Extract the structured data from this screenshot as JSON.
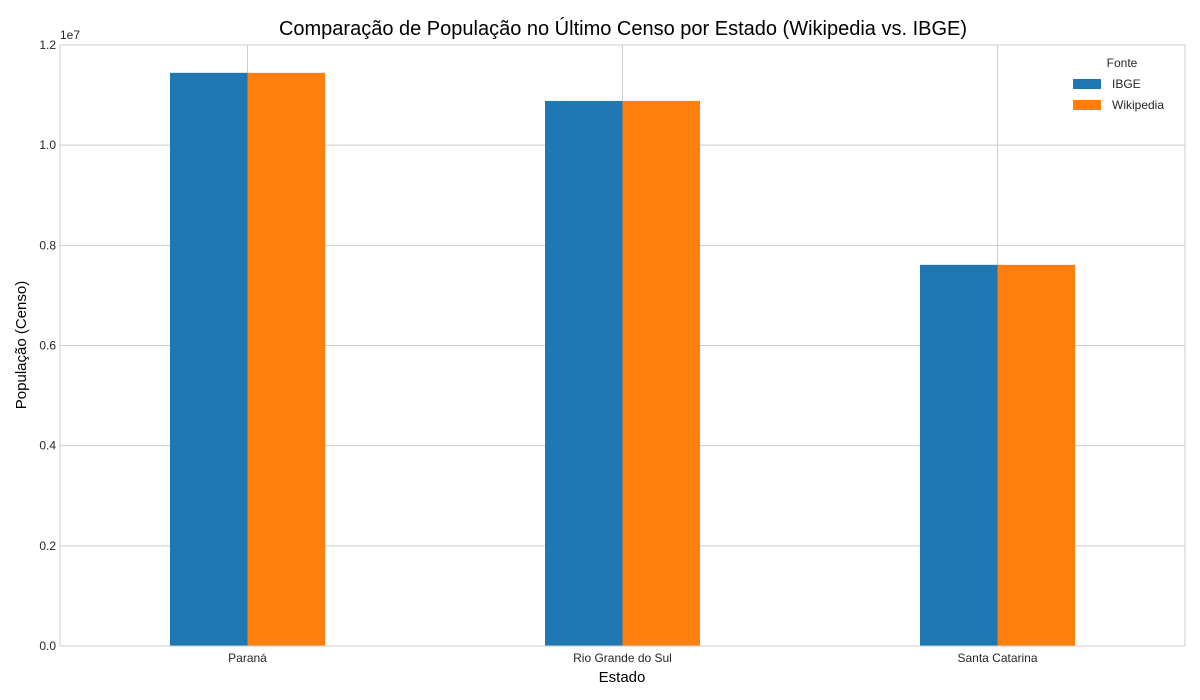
{
  "chart_data": {
    "type": "bar",
    "title": "Comparação de População no Último Censo por Estado (Wikipedia vs. IBGE)",
    "xlabel": "Estado",
    "ylabel": "População (Censo)",
    "y_offset_label": "1e7",
    "categories": [
      "Paraná",
      "Rio Grande do Sul",
      "Santa Catarina"
    ],
    "series": [
      {
        "name": "IBGE",
        "color": "#1f77b4",
        "values": [
          11444380,
          10882965,
          7610361
        ]
      },
      {
        "name": "Wikipedia",
        "color": "#ff7f0e",
        "values": [
          11444380,
          10882965,
          7610361
        ]
      }
    ],
    "ylim": [
      0,
      12000000
    ],
    "yticks": [
      0,
      2000000,
      4000000,
      6000000,
      8000000,
      10000000,
      12000000
    ],
    "ytick_labels": [
      "0.0",
      "0.2",
      "0.4",
      "0.6",
      "0.8",
      "1.0",
      "1.2"
    ],
    "legend": {
      "title": "Fonte",
      "placement": "top-right"
    },
    "grid": true
  }
}
